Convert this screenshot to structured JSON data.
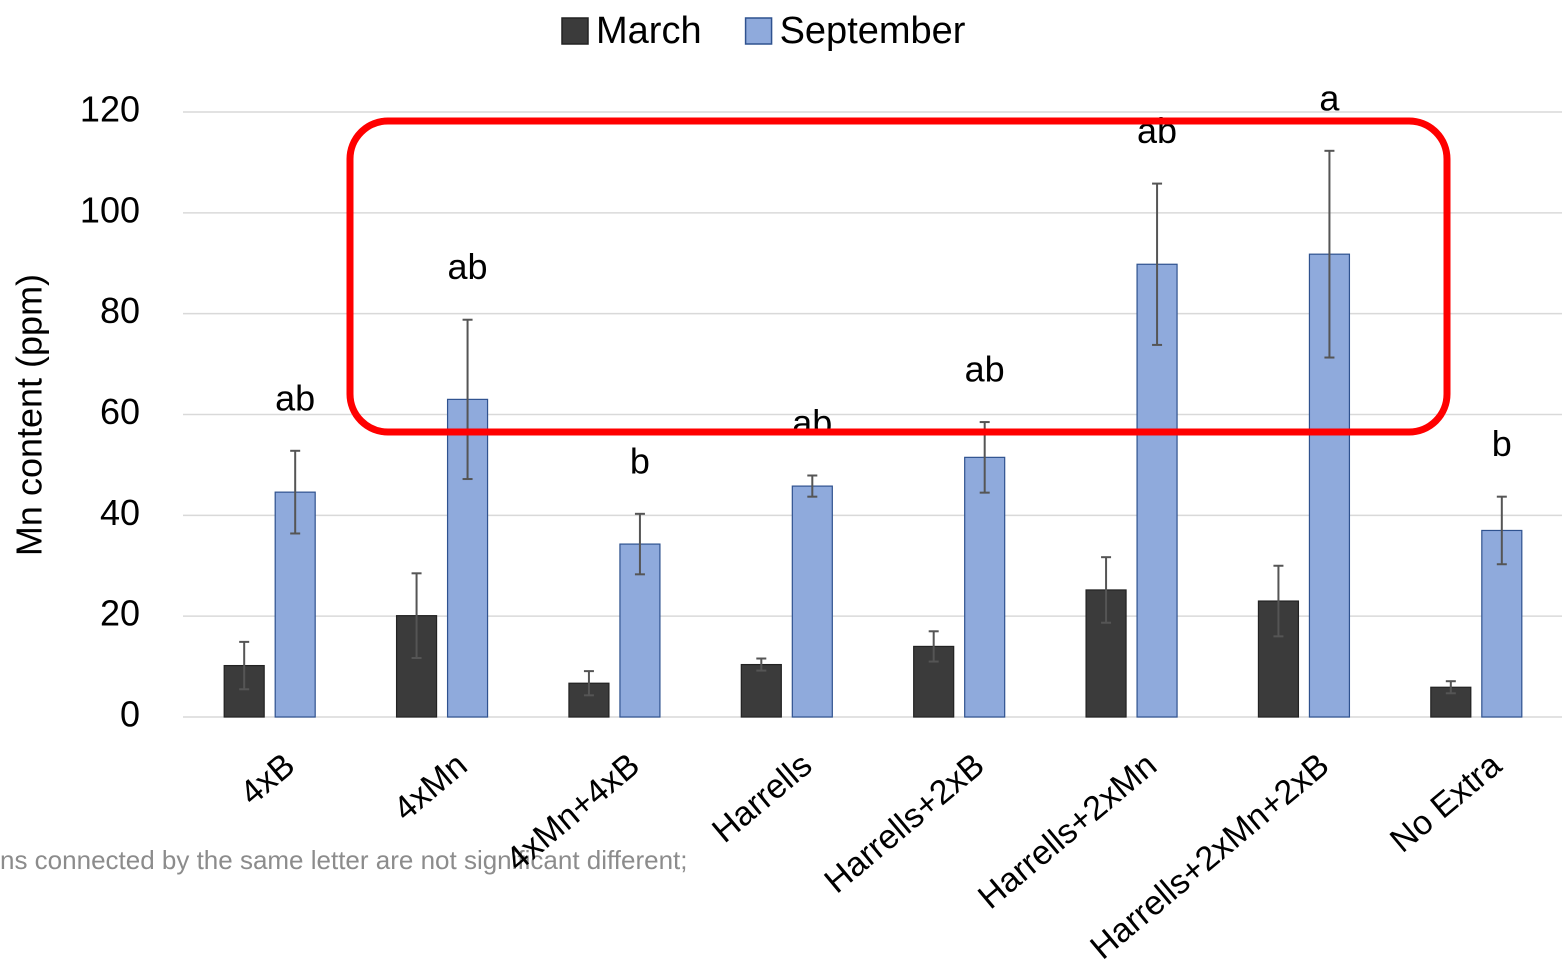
{
  "chart_data": {
    "type": "bar",
    "y_label": "Mn content (ppm)",
    "categories": [
      "4xB",
      "4xMn",
      "4xMn+4xB",
      "Harrells",
      "Harrells+2xB",
      "Harrells+2xMn",
      "Harrells+2xMn+2xB",
      "No Extra"
    ],
    "series": [
      {
        "name": "March",
        "color": "#3b3b3b",
        "values": [
          10.2,
          20.1,
          6.7,
          10.4,
          14.0,
          25.2,
          23.0,
          5.9
        ],
        "errors": [
          4.7,
          8.4,
          2.4,
          1.2,
          3.0,
          6.5,
          7.0,
          1.2
        ]
      },
      {
        "name": "September",
        "color": "#8faadc",
        "values": [
          44.6,
          63.0,
          34.3,
          45.8,
          51.5,
          89.8,
          91.8,
          37.0
        ],
        "errors": [
          8.2,
          15.8,
          6.0,
          2.1,
          7.0,
          16.0,
          20.5,
          6.7
        ]
      }
    ],
    "letters": [
      "ab",
      "ab",
      "b",
      "ab",
      "ab",
      "ab",
      "a",
      "b"
    ],
    "ylim": [
      0,
      120
    ],
    "yticks": [
      0,
      20,
      40,
      60,
      80,
      100,
      120
    ],
    "grid": true,
    "legend": "top",
    "footnote": "ns connected by the same letter are not significant different;"
  }
}
